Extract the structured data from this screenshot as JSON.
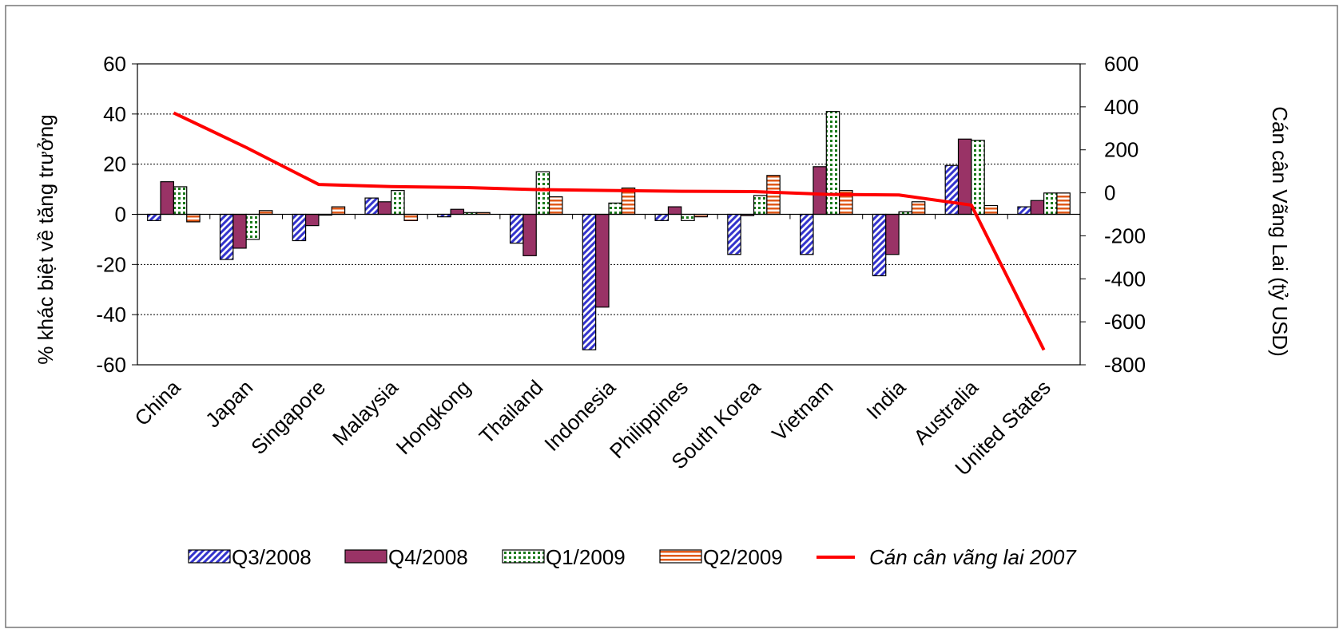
{
  "chart_data": {
    "type": "bar",
    "title": "",
    "ylabel_left": "% khác biệt về tăng trưởng",
    "ylabel_right": "Cán cân Vãng Lai (tỷ USD)",
    "ylim_left": [
      -60,
      60
    ],
    "ylim_right": [
      -800,
      600
    ],
    "yticks_left": [
      "60",
      "40",
      "20",
      "0",
      "-20",
      "-40",
      "-60"
    ],
    "yticks_right": [
      "600",
      "400",
      "200",
      "0",
      "-200",
      "-400",
      "-600",
      "-800"
    ],
    "grid": true,
    "legend_position": "bottom",
    "categories": [
      "China",
      "Japan",
      "Singapore",
      "Malaysia",
      "Hongkong",
      "Thailand",
      "Indonesia",
      "Philippines",
      "South Korea",
      "Vietnam",
      "India",
      "Australia",
      "United States"
    ],
    "series": [
      {
        "name": "Q3/2008",
        "pattern": "diagonal",
        "color": "#3333cc",
        "values": [
          -2.5,
          -18,
          -10.5,
          6.5,
          -1,
          -11.5,
          -54,
          -2.5,
          -16,
          -16,
          -24.5,
          19.5,
          3
        ]
      },
      {
        "name": "Q4/2008",
        "pattern": "solid",
        "color": "#993366",
        "values": [
          13,
          -13.5,
          -4.5,
          5,
          2,
          -16.5,
          -37,
          3,
          -0.5,
          19,
          -16,
          30,
          5.5
        ]
      },
      {
        "name": "Q1/2009",
        "pattern": "dots",
        "color": "#1a7a1a",
        "values": [
          11,
          -10,
          0,
          9.5,
          0.7,
          17,
          4.5,
          -2.5,
          7.5,
          41,
          1,
          29.5,
          8.5
        ]
      },
      {
        "name": "Q2/2009",
        "pattern": "horizontal",
        "color": "#e05a1a",
        "values": [
          -3,
          1.5,
          3,
          -2.5,
          0.7,
          7,
          10.5,
          -1,
          15.5,
          9.5,
          5,
          3.5,
          8.5
        ]
      }
    ],
    "line_series": {
      "name": "Cán cân vãng lai 2007",
      "color": "#ff0000",
      "axis": "right",
      "values": [
        372,
        211,
        39,
        29,
        25,
        15,
        11,
        7,
        6,
        -7,
        -10,
        -57,
        -731
      ]
    }
  }
}
